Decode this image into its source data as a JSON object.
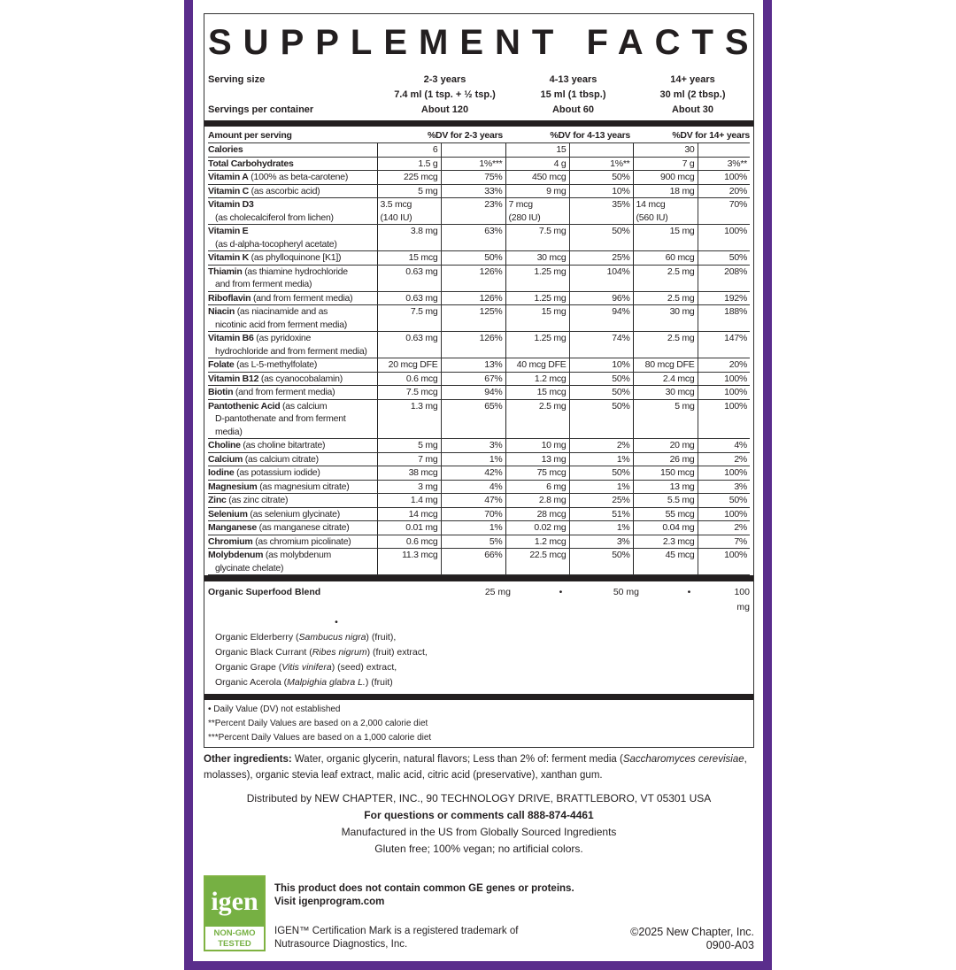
{
  "title": "SUPPLEMENT FACTS",
  "serving": {
    "label": "Serving size",
    "per_container_label": "Servings per container",
    "groups": [
      {
        "age": "2-3 years",
        "size": "7.4 ml (1 tsp. + ½ tsp.)",
        "servings": "About 120"
      },
      {
        "age": "4-13 years",
        "size": "15 ml (1 tbsp.)",
        "servings": "About 60"
      },
      {
        "age": "14+ years",
        "size": "30 ml (2 tbsp.)",
        "servings": "About 30"
      }
    ]
  },
  "header": {
    "amount": "Amount per serving",
    "dv1": "%DV for 2-3 years",
    "dv2": "%DV for 4-13 years",
    "dv3": "%DV for 14+ years"
  },
  "rows": [
    {
      "name": "Calories",
      "desc": "",
      "v": [
        "6",
        "",
        "15",
        "",
        "30",
        ""
      ]
    },
    {
      "name": "Total Carbohydrates",
      "desc": "",
      "v": [
        "1.5 g",
        "1%***",
        "4 g",
        "1%**",
        "7 g",
        "3%**"
      ]
    },
    {
      "name": "Vitamin A",
      "desc": "(100% as beta-carotene)",
      "v": [
        "225 mcg",
        "75%",
        "450 mcg",
        "50%",
        "900 mcg",
        "100%"
      ]
    },
    {
      "name": "Vitamin C",
      "desc": "(as ascorbic acid)",
      "v": [
        "5 mg",
        "33%",
        "9 mg",
        "10%",
        "18 mg",
        "20%"
      ]
    },
    {
      "name": "Vitamin D3",
      "desc2": "(as cholecalciferol from lichen)",
      "v": [
        "3.5 mcg\n(140 IU)",
        "23%",
        "7 mcg\n(280 IU)",
        "35%",
        "14 mcg\n(560 IU)",
        "70%"
      ]
    },
    {
      "name": "Vitamin E",
      "desc2": "(as d-alpha-tocopheryl acetate)",
      "v": [
        "3.8 mg",
        "63%",
        "7.5 mg",
        "50%",
        "15 mg",
        "100%"
      ]
    },
    {
      "name": "Vitamin K",
      "desc": "(as phylloquinone [K1])",
      "v": [
        "15 mcg",
        "50%",
        "30 mcg",
        "25%",
        "60 mcg",
        "50%"
      ]
    },
    {
      "name": "Thiamin",
      "desc": "(as thiamine hydrochloride",
      "desc2": "and from ferment media)",
      "v": [
        "0.63 mg",
        "126%",
        "1.25 mg",
        "104%",
        "2.5 mg",
        "208%"
      ]
    },
    {
      "name": "Riboflavin",
      "desc": "(and from ferment media)",
      "v": [
        "0.63 mg",
        "126%",
        "1.25 mg",
        "96%",
        "2.5 mg",
        "192%"
      ]
    },
    {
      "name": "Niacin",
      "desc": "(as niacinamide and as",
      "desc2": "nicotinic acid from ferment media)",
      "v": [
        "7.5 mg",
        "125%",
        "15 mg",
        "94%",
        "30 mg",
        "188%"
      ]
    },
    {
      "name": "Vitamin B6",
      "desc": "(as pyridoxine",
      "desc2": "hydrochloride and from ferment media)",
      "v": [
        "0.63 mg",
        "126%",
        "1.25 mg",
        "74%",
        "2.5 mg",
        "147%"
      ]
    },
    {
      "name": "Folate",
      "desc": "(as L-5-methylfolate)",
      "v": [
        "20 mcg DFE",
        "13%",
        "40 mcg DFE",
        "10%",
        "80 mcg DFE",
        "20%"
      ]
    },
    {
      "name": "Vitamin B12",
      "desc": "(as cyanocobalamin)",
      "v": [
        "0.6 mcg",
        "67%",
        "1.2 mcg",
        "50%",
        "2.4 mcg",
        "100%"
      ]
    },
    {
      "name": "Biotin",
      "desc": "(and from ferment media)",
      "v": [
        "7.5 mcg",
        "94%",
        "15 mcg",
        "50%",
        "30 mcg",
        "100%"
      ]
    },
    {
      "name": "Pantothenic Acid",
      "desc": "(as calcium",
      "desc2": "D-pantothenate and from ferment media)",
      "v": [
        "1.3 mg",
        "65%",
        "2.5 mg",
        "50%",
        "5 mg",
        "100%"
      ]
    },
    {
      "name": "Choline",
      "desc": "(as choline bitartrate)",
      "v": [
        "5 mg",
        "3%",
        "10 mg",
        "2%",
        "20 mg",
        "4%"
      ]
    },
    {
      "name": "Calcium",
      "desc": "(as calcium citrate)",
      "v": [
        "7 mg",
        "1%",
        "13 mg",
        "1%",
        "26 mg",
        "2%"
      ]
    },
    {
      "name": "Iodine",
      "desc": "(as potassium iodide)",
      "v": [
        "38 mcg",
        "42%",
        "75 mcg",
        "50%",
        "150 mcg",
        "100%"
      ]
    },
    {
      "name": "Magnesium",
      "desc": "(as magnesium citrate)",
      "v": [
        "3 mg",
        "4%",
        "6 mg",
        "1%",
        "13 mg",
        "3%"
      ]
    },
    {
      "name": "Zinc",
      "desc": "(as zinc citrate)",
      "v": [
        "1.4 mg",
        "47%",
        "2.8 mg",
        "25%",
        "5.5 mg",
        "50%"
      ]
    },
    {
      "name": "Selenium",
      "desc": "(as selenium glycinate)",
      "v": [
        "14 mcg",
        "70%",
        "28 mcg",
        "51%",
        "55 mcg",
        "100%"
      ]
    },
    {
      "name": "Manganese",
      "desc": "(as manganese citrate)",
      "v": [
        "0.01 mg",
        "1%",
        "0.02 mg",
        "1%",
        "0.04 mg",
        "2%"
      ]
    },
    {
      "name": "Chromium",
      "desc": "(as chromium picolinate)",
      "v": [
        "0.6 mcg",
        "5%",
        "1.2 mcg",
        "3%",
        "2.3 mcg",
        "7%"
      ]
    },
    {
      "name": "Molybdenum",
      "desc": "(as molybdenum",
      "desc2": "glycinate chelate)",
      "v": [
        "11.3 mcg",
        "66%",
        "22.5 mcg",
        "50%",
        "45 mcg",
        "100%"
      ]
    }
  ],
  "blend": {
    "name": "Organic Superfood Blend",
    "v": [
      "25 mg",
      "•",
      "50 mg",
      "•",
      "100 mg",
      "•"
    ],
    "items": [
      [
        "Organic Elderberry (",
        "Sambucus nigra",
        ") (fruit),"
      ],
      [
        "Organic Black Currant (",
        "Ribes nigrum",
        ") (fruit) extract,"
      ],
      [
        "Organic Grape (",
        "Vitis vinifera",
        ") (seed) extract,"
      ],
      [
        "Organic Acerola (",
        "Malpighia glabra L.",
        ") (fruit)"
      ]
    ]
  },
  "footnotes": [
    "• Daily Value (DV) not established",
    "**Percent Daily Values are based on a 2,000 calorie diet",
    "***Percent Daily Values are based on a 1,000 calorie diet"
  ],
  "other": {
    "label": "Other ingredients:",
    "text1": " Water, organic glycerin, natural flavors; Less than 2% of: ferment media (",
    "italic": "Saccharomyces cerevisiae",
    "text2": ", molasses), organic stevia leaf extract, malic acid, citric acid (preservative), xanthan gum."
  },
  "distributed": "Distributed by NEW CHAPTER, INC., 90 TECHNOLOGY DRIVE, BRATTLEBORO, VT 05301 USA",
  "questions": "For questions or comments call 888-874-4461",
  "manufactured": "Manufactured in the US from Globally Sourced Ingredients",
  "gluten": "Gluten free; 100% vegan; no artificial colors.",
  "igen": {
    "logo": "igen",
    "badge1": "NON-GMO",
    "badge2": "TESTED",
    "line1": "This product does not contain common GE genes or proteins.",
    "line2": "Visit igenprogram.com",
    "tm1": "IGEN™ Certification Mark is a registered trademark of",
    "tm2": "Nutrasource Diagnostics, Inc."
  },
  "copyright": "©2025 New Chapter, Inc.",
  "code": "0900-A03",
  "colors": {
    "frame": "#5a2d8c",
    "igen_green": "#76b043"
  }
}
